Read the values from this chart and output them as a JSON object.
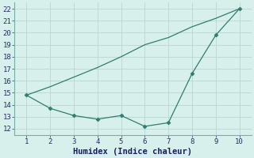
{
  "line1_x": [
    1,
    2,
    3,
    4,
    5,
    6,
    7,
    8,
    9,
    10
  ],
  "line1_y": [
    14.8,
    15.5,
    16.3,
    17.1,
    18.0,
    19.0,
    19.6,
    20.5,
    21.2,
    22.0
  ],
  "line2_x": [
    1,
    2,
    3,
    4,
    5,
    6,
    7,
    8,
    9,
    10
  ],
  "line2_y": [
    14.8,
    13.7,
    13.1,
    12.8,
    13.1,
    12.2,
    12.5,
    16.6,
    19.8,
    22.0
  ],
  "line_color": "#2e7d6e",
  "bg_color": "#d8f0ec",
  "grid_color": "#b8d8d0",
  "xlabel": "Humidex (Indice chaleur)",
  "xlim": [
    0.5,
    10.5
  ],
  "ylim": [
    11.5,
    22.5
  ],
  "xticks": [
    1,
    2,
    3,
    4,
    5,
    6,
    7,
    8,
    9,
    10
  ],
  "yticks": [
    12,
    13,
    14,
    15,
    16,
    17,
    18,
    19,
    20,
    21,
    22
  ],
  "tick_fontsize": 6.5,
  "xlabel_fontsize": 7.5
}
